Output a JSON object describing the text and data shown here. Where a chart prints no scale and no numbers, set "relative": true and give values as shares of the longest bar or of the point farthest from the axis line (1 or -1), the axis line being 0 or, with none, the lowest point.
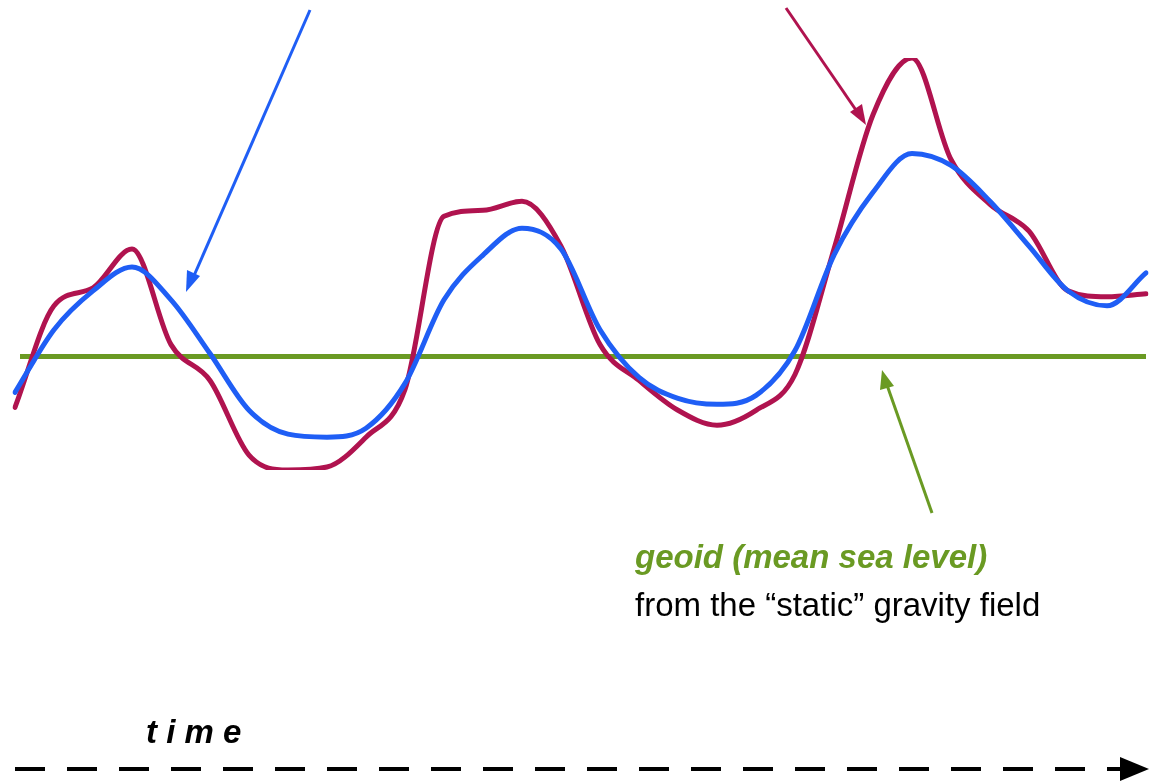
{
  "chart_data": {
    "type": "line",
    "relative": true,
    "categories": [
      null,
      null,
      null,
      null,
      null,
      null,
      null,
      null,
      null,
      null,
      null,
      null,
      null,
      null,
      null,
      null,
      null,
      null,
      null,
      null,
      null,
      null,
      null,
      null,
      null,
      null,
      null,
      null,
      null,
      null
    ],
    "series": [
      {
        "color": "#1f5ef5",
        "values": [
          -0.12,
          0.09,
          0.22,
          0.3,
          0.19,
          0.01,
          -0.18,
          -0.26,
          -0.27,
          -0.24,
          -0.09,
          0.19,
          0.34,
          0.43,
          0.36,
          0.09,
          -0.07,
          -0.14,
          -0.16,
          -0.13,
          0.02,
          0.34,
          0.55,
          0.68,
          0.64,
          0.52,
          0.37,
          0.22,
          0.17,
          0.28
        ]
      },
      {
        "color": "#b0134f",
        "values": [
          -0.17,
          0.17,
          0.23,
          0.36,
          0.04,
          -0.08,
          -0.33,
          -0.38,
          -0.37,
          -0.27,
          -0.11,
          0.47,
          0.49,
          0.52,
          0.37,
          0.04,
          -0.08,
          -0.18,
          -0.23,
          -0.18,
          -0.06,
          0.36,
          0.81,
          1,
          0.66,
          0.51,
          0.42,
          0.22,
          0.2,
          0.21
        ]
      }
    ],
    "ref_lines": [
      {
        "axis": "y",
        "value": 0,
        "label": "geoid (mean sea level)",
        "color": "#6a9a23"
      }
    ],
    "annotations": [
      "from the “static” gravity field",
      "t i m e"
    ],
    "legend": false,
    "marker": "none",
    "line_style": "solid"
  }
}
